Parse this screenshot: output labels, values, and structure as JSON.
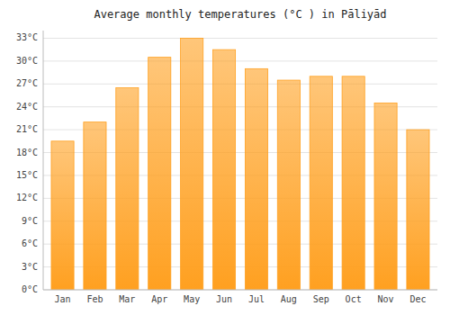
{
  "chart_data": {
    "type": "bar",
    "title": "Average monthly temperatures (°C ) in Pāliyād",
    "categories": [
      "Jan",
      "Feb",
      "Mar",
      "Apr",
      "May",
      "Jun",
      "Jul",
      "Aug",
      "Sep",
      "Oct",
      "Nov",
      "Dec"
    ],
    "values": [
      19.5,
      22.0,
      26.5,
      30.5,
      33.0,
      31.5,
      29.0,
      27.5,
      28.0,
      28.0,
      24.5,
      21.0
    ],
    "color": "#FFA020",
    "ylim": [
      0,
      34
    ],
    "yticks": [
      {
        "value": 0,
        "label": "0°C"
      },
      {
        "value": 3,
        "label": "3°C"
      },
      {
        "value": 6,
        "label": "6°C"
      },
      {
        "value": 9,
        "label": "9°C"
      },
      {
        "value": 12,
        "label": "12°C"
      },
      {
        "value": 15,
        "label": "15°C"
      },
      {
        "value": 18,
        "label": "18°C"
      },
      {
        "value": 21,
        "label": "21°C"
      },
      {
        "value": 24,
        "label": "24°C"
      },
      {
        "value": 27,
        "label": "27°C"
      },
      {
        "value": 30,
        "label": "30°C"
      },
      {
        "value": 33,
        "label": "33°C"
      }
    ],
    "grid": true
  }
}
